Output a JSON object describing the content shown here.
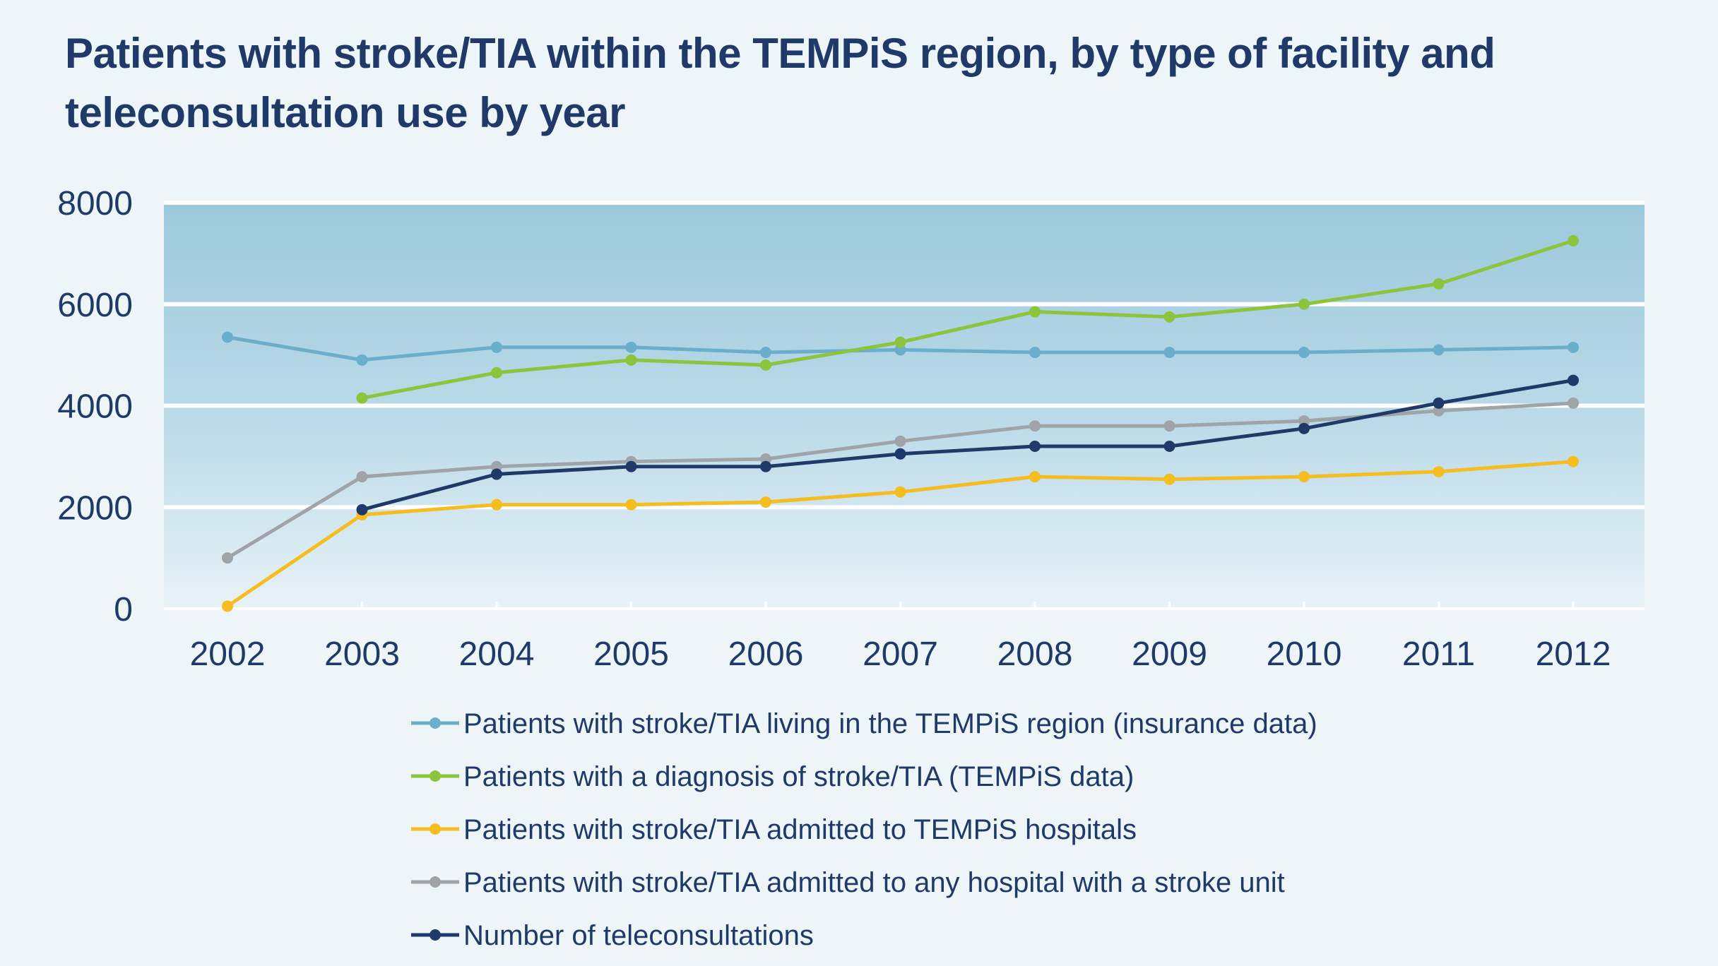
{
  "chart_data": {
    "type": "line",
    "title": "Patients with stroke/TIA within the TEMPiS region, by type of facility and teleconsultation use by year",
    "xlabel": "",
    "ylabel": "",
    "x": [
      "2002",
      "2003",
      "2004",
      "2005",
      "2006",
      "2007",
      "2008",
      "2009",
      "2010",
      "2011",
      "2012"
    ],
    "ylim": [
      0,
      8000
    ],
    "yticks": [
      "0",
      "2000",
      "4000",
      "6000",
      "8000"
    ],
    "grid": true,
    "legend_position": "bottom",
    "series": [
      {
        "name": "Patients with stroke/TIA living in the TEMPiS region (insurance data)",
        "color": "#6aaecb",
        "values": [
          5350,
          4900,
          5150,
          5150,
          5050,
          5100,
          5050,
          5050,
          5050,
          5100,
          5150
        ]
      },
      {
        "name": "Patients with a diagnosis of stroke/TIA (TEMPiS data)",
        "color": "#8cc43e",
        "values": [
          null,
          4150,
          4650,
          4900,
          4800,
          5250,
          5850,
          5750,
          6000,
          6400,
          7250
        ]
      },
      {
        "name": "Patients with stroke/TIA admitted to TEMPiS hospitals",
        "color": "#f5bd1f",
        "values": [
          50,
          1850,
          2050,
          2050,
          2100,
          2300,
          2600,
          2550,
          2600,
          2700,
          2900
        ]
      },
      {
        "name": "Patients with stroke/TIA admitted to any hospital with a stroke unit",
        "color": "#a0a3a8",
        "values": [
          1000,
          2600,
          2800,
          2900,
          2950,
          3300,
          3600,
          3600,
          3700,
          3900,
          4050
        ]
      },
      {
        "name": "Number of teleconsultations",
        "color": "#1f3a68",
        "values": [
          null,
          1950,
          2650,
          2800,
          2800,
          3050,
          3200,
          3200,
          3550,
          4050,
          4500
        ]
      }
    ]
  }
}
